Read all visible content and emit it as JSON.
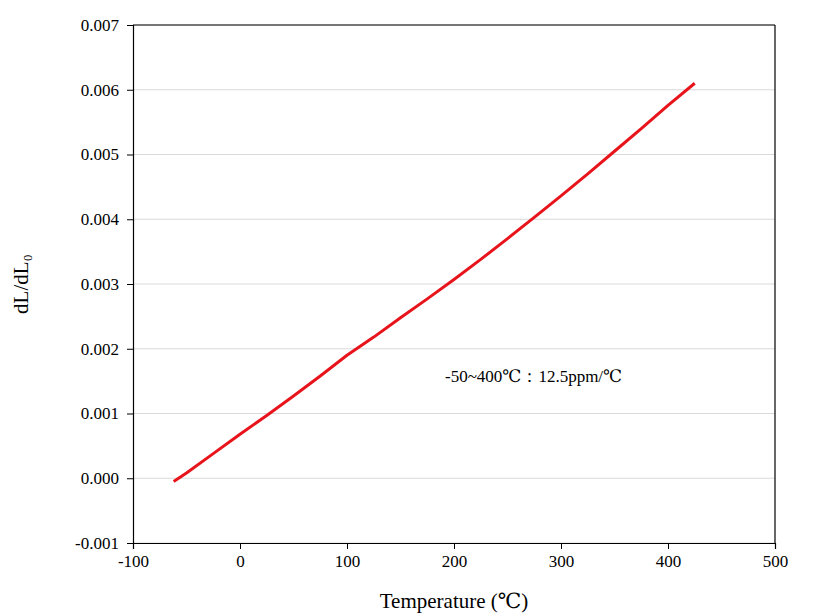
{
  "chart_data": {
    "type": "line",
    "x_label": "Temperature (℃)",
    "y_label": "dL/dL₀",
    "annotations": [
      {
        "text": "-50~400℃：12.5ppm/℃"
      }
    ],
    "x": [
      -62,
      -50,
      -25,
      0,
      25,
      50,
      75,
      100,
      125,
      150,
      175,
      200,
      225,
      250,
      275,
      300,
      325,
      350,
      375,
      400,
      425
    ],
    "series": [
      {
        "color": "#e8141b",
        "line_style": "solid",
        "values": [
          -5e-05,
          8e-05,
          0.00038,
          0.00068,
          0.00097,
          0.00127,
          0.00158,
          0.0019,
          0.00218,
          0.00248,
          0.00277,
          0.00307,
          0.00338,
          0.0037,
          0.00403,
          0.00436,
          0.0047,
          0.00505,
          0.0054,
          0.00576,
          0.0061
        ]
      }
    ],
    "xlim": [
      -100,
      500
    ],
    "xticks": [
      -100,
      0,
      100,
      200,
      300,
      400,
      500
    ],
    "ylim": [
      -0.001,
      0.007
    ],
    "yticks": [
      -0.001,
      {
        "value": 0,
        "label": "0.000"
      },
      0.001,
      0.002,
      0.003,
      0.004,
      0.005,
      0.006,
      0.007
    ],
    "grid": "y"
  }
}
